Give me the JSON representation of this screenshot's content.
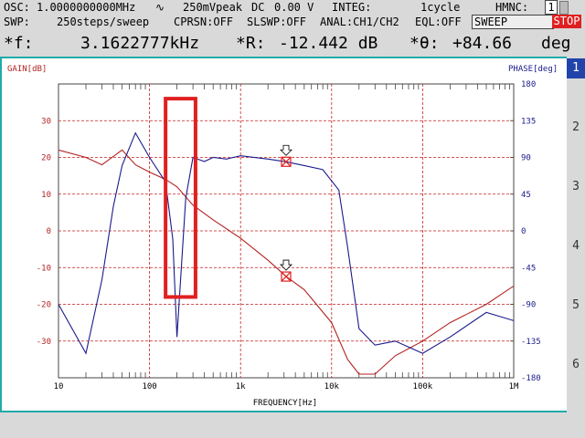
{
  "status": {
    "osc_label": "OSC:",
    "osc_freq": "1.0000000000MHz",
    "wave_symbol": "∿",
    "amplitude": "250mVpeak",
    "dc_label": "DC",
    "dc_value": "0.00 V",
    "integ_label": "INTEG:",
    "integ_value": "1cycle",
    "hmnc_label": "HMNC:",
    "hmnc_value": "1",
    "swp_label": "SWP:",
    "swp_value": "250steps/sweep",
    "cprsn": "CPRSN:OFF",
    "slswp": "SLSWP:OFF",
    "anal": "ANAL:CH1/CH2",
    "eql": "EQL:OFF",
    "sweep_button": "SWEEP",
    "stop_button": "STOP"
  },
  "readout": {
    "f_label": "*f:",
    "f_value": "3.1622777kHz",
    "r_label": "*R:",
    "r_value": "-12.442 dB",
    "theta_label": "*θ:",
    "theta_value": "+84.66",
    "theta_unit": "deg"
  },
  "side_tabs": [
    "1",
    "2",
    "3",
    "4",
    "5",
    "6"
  ],
  "active_tab": "1",
  "colors": {
    "gain": "#b22222",
    "phase": "#1a1a8c",
    "grid": "#c81e1e",
    "frame": "#22aaaa",
    "highlight": "#e02020",
    "tab_active": "#2244aa"
  },
  "chart_data": {
    "type": "line",
    "title": "",
    "xlabel": "FREQUENCY[Hz]",
    "ylabel_left": "GAIN[dB]",
    "ylabel_right": "PHASE[deg]",
    "x_scale": "log",
    "xlim": [
      10,
      1000000
    ],
    "ylim_left": [
      -40,
      40
    ],
    "ylim_right": [
      -180,
      180
    ],
    "x_ticks": [
      "10",
      "100",
      "1k",
      "10k",
      "100k",
      "1M"
    ],
    "y_ticks_left": [
      "30",
      "20",
      "10",
      "0",
      "-10",
      "-20",
      "-30"
    ],
    "y_ticks_right": [
      "180",
      "135",
      "90",
      "45",
      "0",
      "-45",
      "-90",
      "-135",
      "-180"
    ],
    "grid": true,
    "series": [
      {
        "axis": "left",
        "x": [
          10,
          20,
          30,
          50,
          70,
          100,
          150,
          200,
          300,
          500,
          1000,
          2000,
          3162,
          5000,
          10000,
          15000,
          20000,
          30000,
          50000,
          100000,
          200000,
          500000,
          1000000
        ],
        "y": [
          22,
          20,
          18,
          22,
          18,
          16,
          14,
          12,
          7,
          3,
          -2,
          -8,
          -12.4,
          -16,
          -25,
          -35,
          -39,
          -39,
          -34,
          -30,
          -25,
          -20,
          -15
        ]
      },
      {
        "axis": "right",
        "x": [
          10,
          20,
          30,
          40,
          50,
          70,
          100,
          150,
          180,
          200,
          250,
          300,
          400,
          500,
          700,
          1000,
          2000,
          3162,
          5000,
          8000,
          12000,
          15000,
          20000,
          30000,
          50000,
          100000,
          200000,
          500000,
          1000000
        ],
        "y": [
          -90,
          -150,
          -60,
          30,
          80,
          120,
          90,
          60,
          -10,
          -130,
          40,
          90,
          85,
          90,
          88,
          92,
          88,
          84.66,
          80,
          75,
          50,
          -20,
          -120,
          -140,
          -135,
          -150,
          -130,
          -100,
          -110
        ]
      }
    ],
    "markers": [
      {
        "x": 3162,
        "axis": "left",
        "y": -12.442
      },
      {
        "x": 3162,
        "axis": "right",
        "y": 84.66
      }
    ],
    "highlight_region": {
      "x": [
        150,
        320
      ],
      "y_left": [
        -18,
        36
      ]
    }
  }
}
